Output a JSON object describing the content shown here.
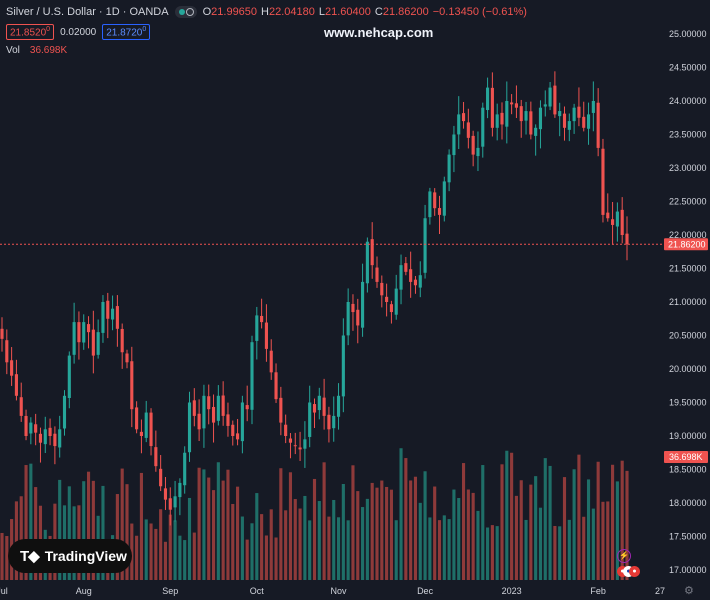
{
  "header": {
    "symbol": "Silver / U.S. Dollar · 1D · OANDA",
    "ohlc": [
      {
        "k": "O",
        "v": "21.99650"
      },
      {
        "k": "H",
        "v": "22.04180"
      },
      {
        "k": "L",
        "v": "21.60400"
      },
      {
        "k": "C",
        "v": "21.86200"
      },
      {
        "k": "",
        "v": "−0.13450 (−0.61%)"
      }
    ],
    "sell_price": "21.8520",
    "sell_sup": "0",
    "spread": "0.02000",
    "buy_price": "21.8720",
    "buy_sup": "0",
    "vol_label": "Vol",
    "vol_value": "36.698K"
  },
  "watermark": "www.nehcap.com",
  "logo_text": "TradingView",
  "colors": {
    "background": "#161a25",
    "up": "#26a69a",
    "down": "#ef5350",
    "vol_up": "#1f6f68",
    "vol_down": "#8e3a3a",
    "axis_text": "#d1d4dc",
    "last_price_tag": "#ef5350"
  },
  "chart_data": {
    "type": "candlestick",
    "title": "Silver / U.S. Dollar · 1D · OANDA",
    "y_axis": {
      "ticks": [
        "25.00000",
        "24.50000",
        "24.00000",
        "23.50000",
        "23.00000",
        "22.50000",
        "22.00000",
        "21.50000",
        "21.00000",
        "20.50000",
        "20.00000",
        "19.50000",
        "19.00000",
        "18.50000",
        "18.00000",
        "17.50000",
        "17.00000"
      ],
      "ylim": [
        16.95,
        25.1
      ]
    },
    "x_axis": {
      "labels": [
        "Jul",
        "Aug",
        "Sep",
        "Oct",
        "Nov",
        "Dec",
        "2023",
        "Feb",
        "27"
      ],
      "label_bar_index": [
        0,
        17,
        35,
        53,
        70,
        88,
        106,
        124,
        139
      ]
    },
    "last_price": "21.86200",
    "volume_last": "36.698K",
    "closes": [
      20.45,
      20.1,
      19.9,
      19.6,
      19.3,
      19.0,
      19.2,
      19.05,
      18.9,
      19.1,
      19.0,
      18.85,
      19.1,
      19.6,
      20.2,
      20.7,
      20.4,
      20.7,
      20.55,
      20.2,
      20.55,
      21.0,
      20.75,
      20.9,
      20.6,
      20.25,
      20.1,
      19.4,
      19.1,
      19.0,
      19.35,
      18.85,
      18.55,
      18.25,
      18.05,
      17.9,
      18.1,
      18.3,
      18.75,
      19.5,
      19.3,
      19.1,
      19.6,
      19.4,
      19.2,
      19.6,
      19.3,
      19.15,
      19.0,
      18.95,
      19.5,
      19.4,
      20.4,
      20.8,
      20.7,
      20.3,
      19.95,
      19.55,
      19.2,
      19.0,
      18.9,
      18.85,
      18.8,
      18.95,
      19.5,
      19.35,
      19.6,
      19.3,
      19.1,
      19.3,
      19.6,
      20.5,
      21.0,
      20.85,
      20.65,
      21.3,
      21.9,
      21.55,
      21.3,
      21.1,
      21.0,
      20.85,
      21.2,
      21.55,
      21.45,
      21.3,
      21.25,
      21.4,
      22.25,
      22.65,
      22.4,
      22.3,
      22.8,
      23.2,
      23.5,
      23.8,
      23.7,
      23.45,
      23.2,
      23.3,
      23.9,
      24.2,
      23.6,
      23.8,
      23.65,
      24.0,
      23.95,
      23.9,
      23.7,
      23.85,
      23.5,
      23.6,
      23.9,
      23.95,
      24.2,
      23.8,
      23.85,
      23.6,
      23.7,
      23.9,
      23.75,
      23.6,
      23.8,
      24.0,
      23.3,
      22.3,
      22.25,
      22.15,
      22.35,
      22.0,
      21.86
    ],
    "volume_max": 1.0
  }
}
